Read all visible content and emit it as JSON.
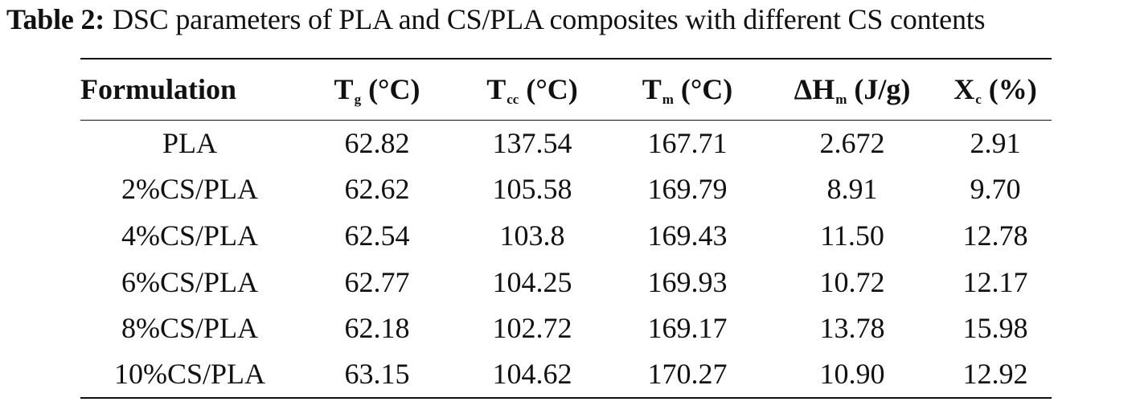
{
  "caption": {
    "label": "Table 2:",
    "text": "DSC parameters of PLA and CS/PLA composites with different CS contents"
  },
  "table": {
    "headers": [
      {
        "main": "Formulation",
        "sub": "",
        "unit": ""
      },
      {
        "main": "T",
        "sub": "g",
        "unit": " (°C)"
      },
      {
        "main": "T",
        "sub": "cc",
        "unit": " (°C)"
      },
      {
        "main": "T",
        "sub": "m",
        "unit": " (°C)"
      },
      {
        "main": "ΔH",
        "sub": "m",
        "unit": " (J/g)"
      },
      {
        "main": "X",
        "sub": "c",
        "unit": " (%)"
      }
    ],
    "rows": [
      [
        "PLA",
        "62.82",
        "137.54",
        "167.71",
        "2.672",
        "2.91"
      ],
      [
        "2%CS/PLA",
        "62.62",
        "105.58",
        "169.79",
        "8.91",
        "9.70"
      ],
      [
        "4%CS/PLA",
        "62.54",
        "103.8",
        "169.43",
        "11.50",
        "12.78"
      ],
      [
        "6%CS/PLA",
        "62.77",
        "104.25",
        "169.93",
        "10.72",
        "12.17"
      ],
      [
        "8%CS/PLA",
        "62.18",
        "102.72",
        "169.17",
        "13.78",
        "15.98"
      ],
      [
        "10%CS/PLA",
        "63.15",
        "104.62",
        "170.27",
        "10.90",
        "12.92"
      ]
    ]
  }
}
